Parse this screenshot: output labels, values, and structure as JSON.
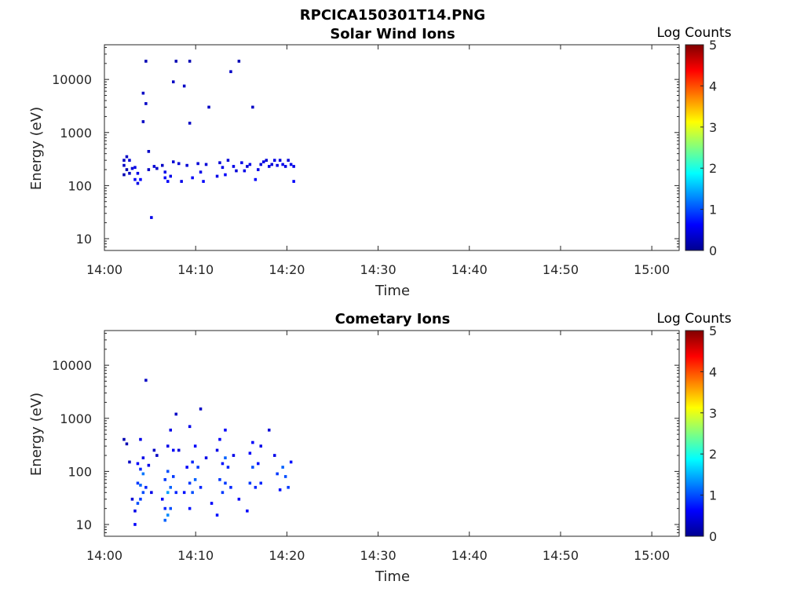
{
  "figure_title": "RPCICA150301T14.PNG",
  "colormap": [
    "#00008f",
    "#0000ff",
    "#0080ff",
    "#00ffff",
    "#80ff80",
    "#ffff00",
    "#ff8000",
    "#ff0000",
    "#800000"
  ],
  "chart_data": [
    {
      "type": "heatmap",
      "title": "Solar Wind Ions",
      "xlabel": "Time",
      "ylabel": "Energy (eV)",
      "y_scale": "log",
      "xlim": [
        "14:00",
        "15:03"
      ],
      "ylim": [
        6,
        45000
      ],
      "x_ticks": [
        "14:00",
        "14:10",
        "14:20",
        "14:30",
        "14:40",
        "14:50",
        "15:00"
      ],
      "y_ticks": [
        "10",
        "100",
        "1000",
        "10000"
      ],
      "colorbar": {
        "label": "Log Counts",
        "range": [
          0,
          5
        ],
        "ticks": [
          "0",
          "1",
          "2",
          "3",
          "4",
          "5"
        ]
      },
      "time_bin_minutes": 0.3,
      "cells": [
        [
          2.0,
          300,
          0.3
        ],
        [
          2.0,
          240,
          0.3
        ],
        [
          2.0,
          160,
          0.2
        ],
        [
          2.3,
          350,
          0.3
        ],
        [
          2.3,
          200,
          0.2
        ],
        [
          2.6,
          300,
          0.4
        ],
        [
          2.6,
          170,
          0.3
        ],
        [
          2.9,
          210,
          0.4
        ],
        [
          3.2,
          130,
          0.6
        ],
        [
          3.2,
          220,
          0.5
        ],
        [
          3.5,
          110,
          0.5
        ],
        [
          3.5,
          170,
          0.5
        ],
        [
          3.8,
          130,
          0.6
        ],
        [
          4.1,
          5500,
          0.3
        ],
        [
          4.1,
          1600,
          0.3
        ],
        [
          4.4,
          3500,
          0.3
        ],
        [
          4.4,
          22000,
          0.2
        ],
        [
          4.7,
          200,
          0.3
        ],
        [
          4.7,
          440,
          0.3
        ],
        [
          5.0,
          25,
          0.5
        ],
        [
          5.3,
          230,
          0.4
        ],
        [
          5.6,
          210,
          0.3
        ],
        [
          6.2,
          240,
          0.3
        ],
        [
          6.5,
          140,
          0.6
        ],
        [
          6.5,
          180,
          0.5
        ],
        [
          6.8,
          120,
          0.6
        ],
        [
          7.1,
          150,
          0.5
        ],
        [
          7.4,
          280,
          0.4
        ],
        [
          7.4,
          9000,
          0.3
        ],
        [
          7.7,
          22000,
          0.2
        ],
        [
          8.0,
          260,
          0.4
        ],
        [
          8.3,
          120,
          0.5
        ],
        [
          8.6,
          7500,
          0.3
        ],
        [
          8.9,
          240,
          0.4
        ],
        [
          9.2,
          1500,
          0.3
        ],
        [
          9.2,
          22000,
          0.2
        ],
        [
          9.5,
          140,
          0.6
        ],
        [
          10.1,
          260,
          0.4
        ],
        [
          10.4,
          180,
          0.5
        ],
        [
          10.7,
          120,
          0.6
        ],
        [
          11.0,
          250,
          0.4
        ],
        [
          11.3,
          3000,
          0.3
        ],
        [
          12.2,
          150,
          0.5
        ],
        [
          12.5,
          270,
          0.4
        ],
        [
          12.8,
          220,
          0.5
        ],
        [
          13.1,
          160,
          0.6
        ],
        [
          13.4,
          300,
          0.4
        ],
        [
          13.7,
          14000,
          0.3
        ],
        [
          14.0,
          230,
          0.5
        ],
        [
          14.3,
          190,
          0.4
        ],
        [
          14.6,
          22000,
          0.2
        ],
        [
          14.9,
          270,
          0.5
        ],
        [
          15.2,
          190,
          0.5
        ],
        [
          15.5,
          230,
          0.4
        ],
        [
          15.8,
          250,
          0.5
        ],
        [
          16.1,
          3000,
          0.3
        ],
        [
          16.4,
          130,
          0.6
        ],
        [
          16.7,
          200,
          0.5
        ],
        [
          17.0,
          250,
          0.4
        ],
        [
          17.3,
          280,
          0.5
        ],
        [
          17.6,
          300,
          0.4
        ],
        [
          17.9,
          230,
          0.5
        ],
        [
          18.2,
          250,
          0.4
        ],
        [
          18.5,
          300,
          0.5
        ],
        [
          18.8,
          240,
          0.5
        ],
        [
          19.1,
          300,
          0.4
        ],
        [
          19.4,
          250,
          0.5
        ],
        [
          19.7,
          230,
          0.5
        ],
        [
          20.0,
          300,
          0.4
        ],
        [
          20.3,
          250,
          0.5
        ],
        [
          20.6,
          120,
          0.6
        ],
        [
          20.6,
          230,
          0.5
        ]
      ]
    },
    {
      "type": "heatmap",
      "title": "Cometary Ions",
      "xlabel": "Time",
      "ylabel": "Energy (eV)",
      "y_scale": "log",
      "xlim": [
        "14:00",
        "15:03"
      ],
      "ylim": [
        6,
        45000
      ],
      "x_ticks": [
        "14:00",
        "14:10",
        "14:20",
        "14:30",
        "14:40",
        "14:50",
        "15:00"
      ],
      "y_ticks": [
        "10",
        "100",
        "1000",
        "10000"
      ],
      "colorbar": {
        "label": "Log Counts",
        "range": [
          0,
          5
        ],
        "ticks": [
          "0",
          "1",
          "2",
          "3",
          "4",
          "5"
        ]
      },
      "time_bin_minutes": 0.3,
      "cells": [
        [
          2.0,
          400,
          0.2
        ],
        [
          2.3,
          330,
          0.2
        ],
        [
          2.6,
          150,
          0.3
        ],
        [
          2.9,
          30,
          0.4
        ],
        [
          3.2,
          18,
          0.5
        ],
        [
          3.2,
          10,
          0.6
        ],
        [
          3.5,
          140,
          0.6
        ],
        [
          3.5,
          60,
          0.9
        ],
        [
          3.5,
          25,
          1.0
        ],
        [
          3.8,
          400,
          0.5
        ],
        [
          3.8,
          110,
          0.8
        ],
        [
          3.8,
          55,
          1.1
        ],
        [
          3.8,
          30,
          0.9
        ],
        [
          4.1,
          180,
          0.5
        ],
        [
          4.1,
          90,
          1.2
        ],
        [
          4.1,
          40,
          1.0
        ],
        [
          4.4,
          50,
          0.8
        ],
        [
          4.4,
          5200,
          0.3
        ],
        [
          4.7,
          130,
          0.5
        ],
        [
          5.0,
          40,
          0.5
        ],
        [
          5.3,
          250,
          0.3
        ],
        [
          5.6,
          200,
          0.3
        ],
        [
          6.2,
          30,
          0.6
        ],
        [
          6.5,
          20,
          0.8
        ],
        [
          6.5,
          12,
          1.1
        ],
        [
          6.5,
          70,
          0.9
        ],
        [
          6.8,
          300,
          0.5
        ],
        [
          6.8,
          40,
          1.4
        ],
        [
          6.8,
          15,
          1.3
        ],
        [
          6.8,
          100,
          1.0
        ],
        [
          7.1,
          600,
          0.5
        ],
        [
          7.1,
          50,
          1.1
        ],
        [
          7.1,
          20,
          1.0
        ],
        [
          7.4,
          250,
          0.6
        ],
        [
          7.4,
          80,
          0.9
        ],
        [
          7.7,
          1200,
          0.3
        ],
        [
          7.7,
          40,
          0.8
        ],
        [
          8.0,
          250,
          0.4
        ],
        [
          8.6,
          40,
          0.7
        ],
        [
          8.9,
          120,
          0.6
        ],
        [
          9.2,
          700,
          0.5
        ],
        [
          9.2,
          60,
          0.9
        ],
        [
          9.2,
          20,
          0.7
        ],
        [
          9.5,
          150,
          0.8
        ],
        [
          9.5,
          40,
          1.0
        ],
        [
          9.8,
          300,
          0.6
        ],
        [
          9.8,
          70,
          1.1
        ],
        [
          10.1,
          120,
          0.9
        ],
        [
          10.4,
          50,
          0.8
        ],
        [
          10.4,
          1500,
          0.3
        ],
        [
          11.0,
          180,
          0.5
        ],
        [
          11.6,
          25,
          0.6
        ],
        [
          12.2,
          250,
          0.5
        ],
        [
          12.2,
          15,
          0.7
        ],
        [
          12.5,
          400,
          0.6
        ],
        [
          12.5,
          70,
          0.9
        ],
        [
          12.8,
          140,
          0.7
        ],
        [
          12.8,
          40,
          0.9
        ],
        [
          13.1,
          600,
          0.6
        ],
        [
          13.1,
          180,
          1.1
        ],
        [
          13.1,
          60,
          0.9
        ],
        [
          13.4,
          120,
          0.8
        ],
        [
          13.7,
          50,
          0.8
        ],
        [
          14.0,
          200,
          0.5
        ],
        [
          14.6,
          30,
          0.6
        ],
        [
          15.5,
          18,
          0.6
        ],
        [
          15.8,
          220,
          0.6
        ],
        [
          15.8,
          60,
          0.9
        ],
        [
          16.1,
          350,
          0.6
        ],
        [
          16.1,
          120,
          1.0
        ],
        [
          16.4,
          50,
          0.8
        ],
        [
          16.7,
          140,
          0.7
        ],
        [
          17.0,
          300,
          0.5
        ],
        [
          17.0,
          60,
          0.8
        ],
        [
          17.9,
          600,
          0.4
        ],
        [
          18.5,
          200,
          0.5
        ],
        [
          18.8,
          90,
          0.9
        ],
        [
          19.1,
          45,
          0.7
        ],
        [
          19.4,
          120,
          1.1
        ],
        [
          19.7,
          80,
          1.0
        ],
        [
          20.0,
          50,
          0.9
        ],
        [
          20.3,
          150,
          0.7
        ]
      ]
    }
  ]
}
